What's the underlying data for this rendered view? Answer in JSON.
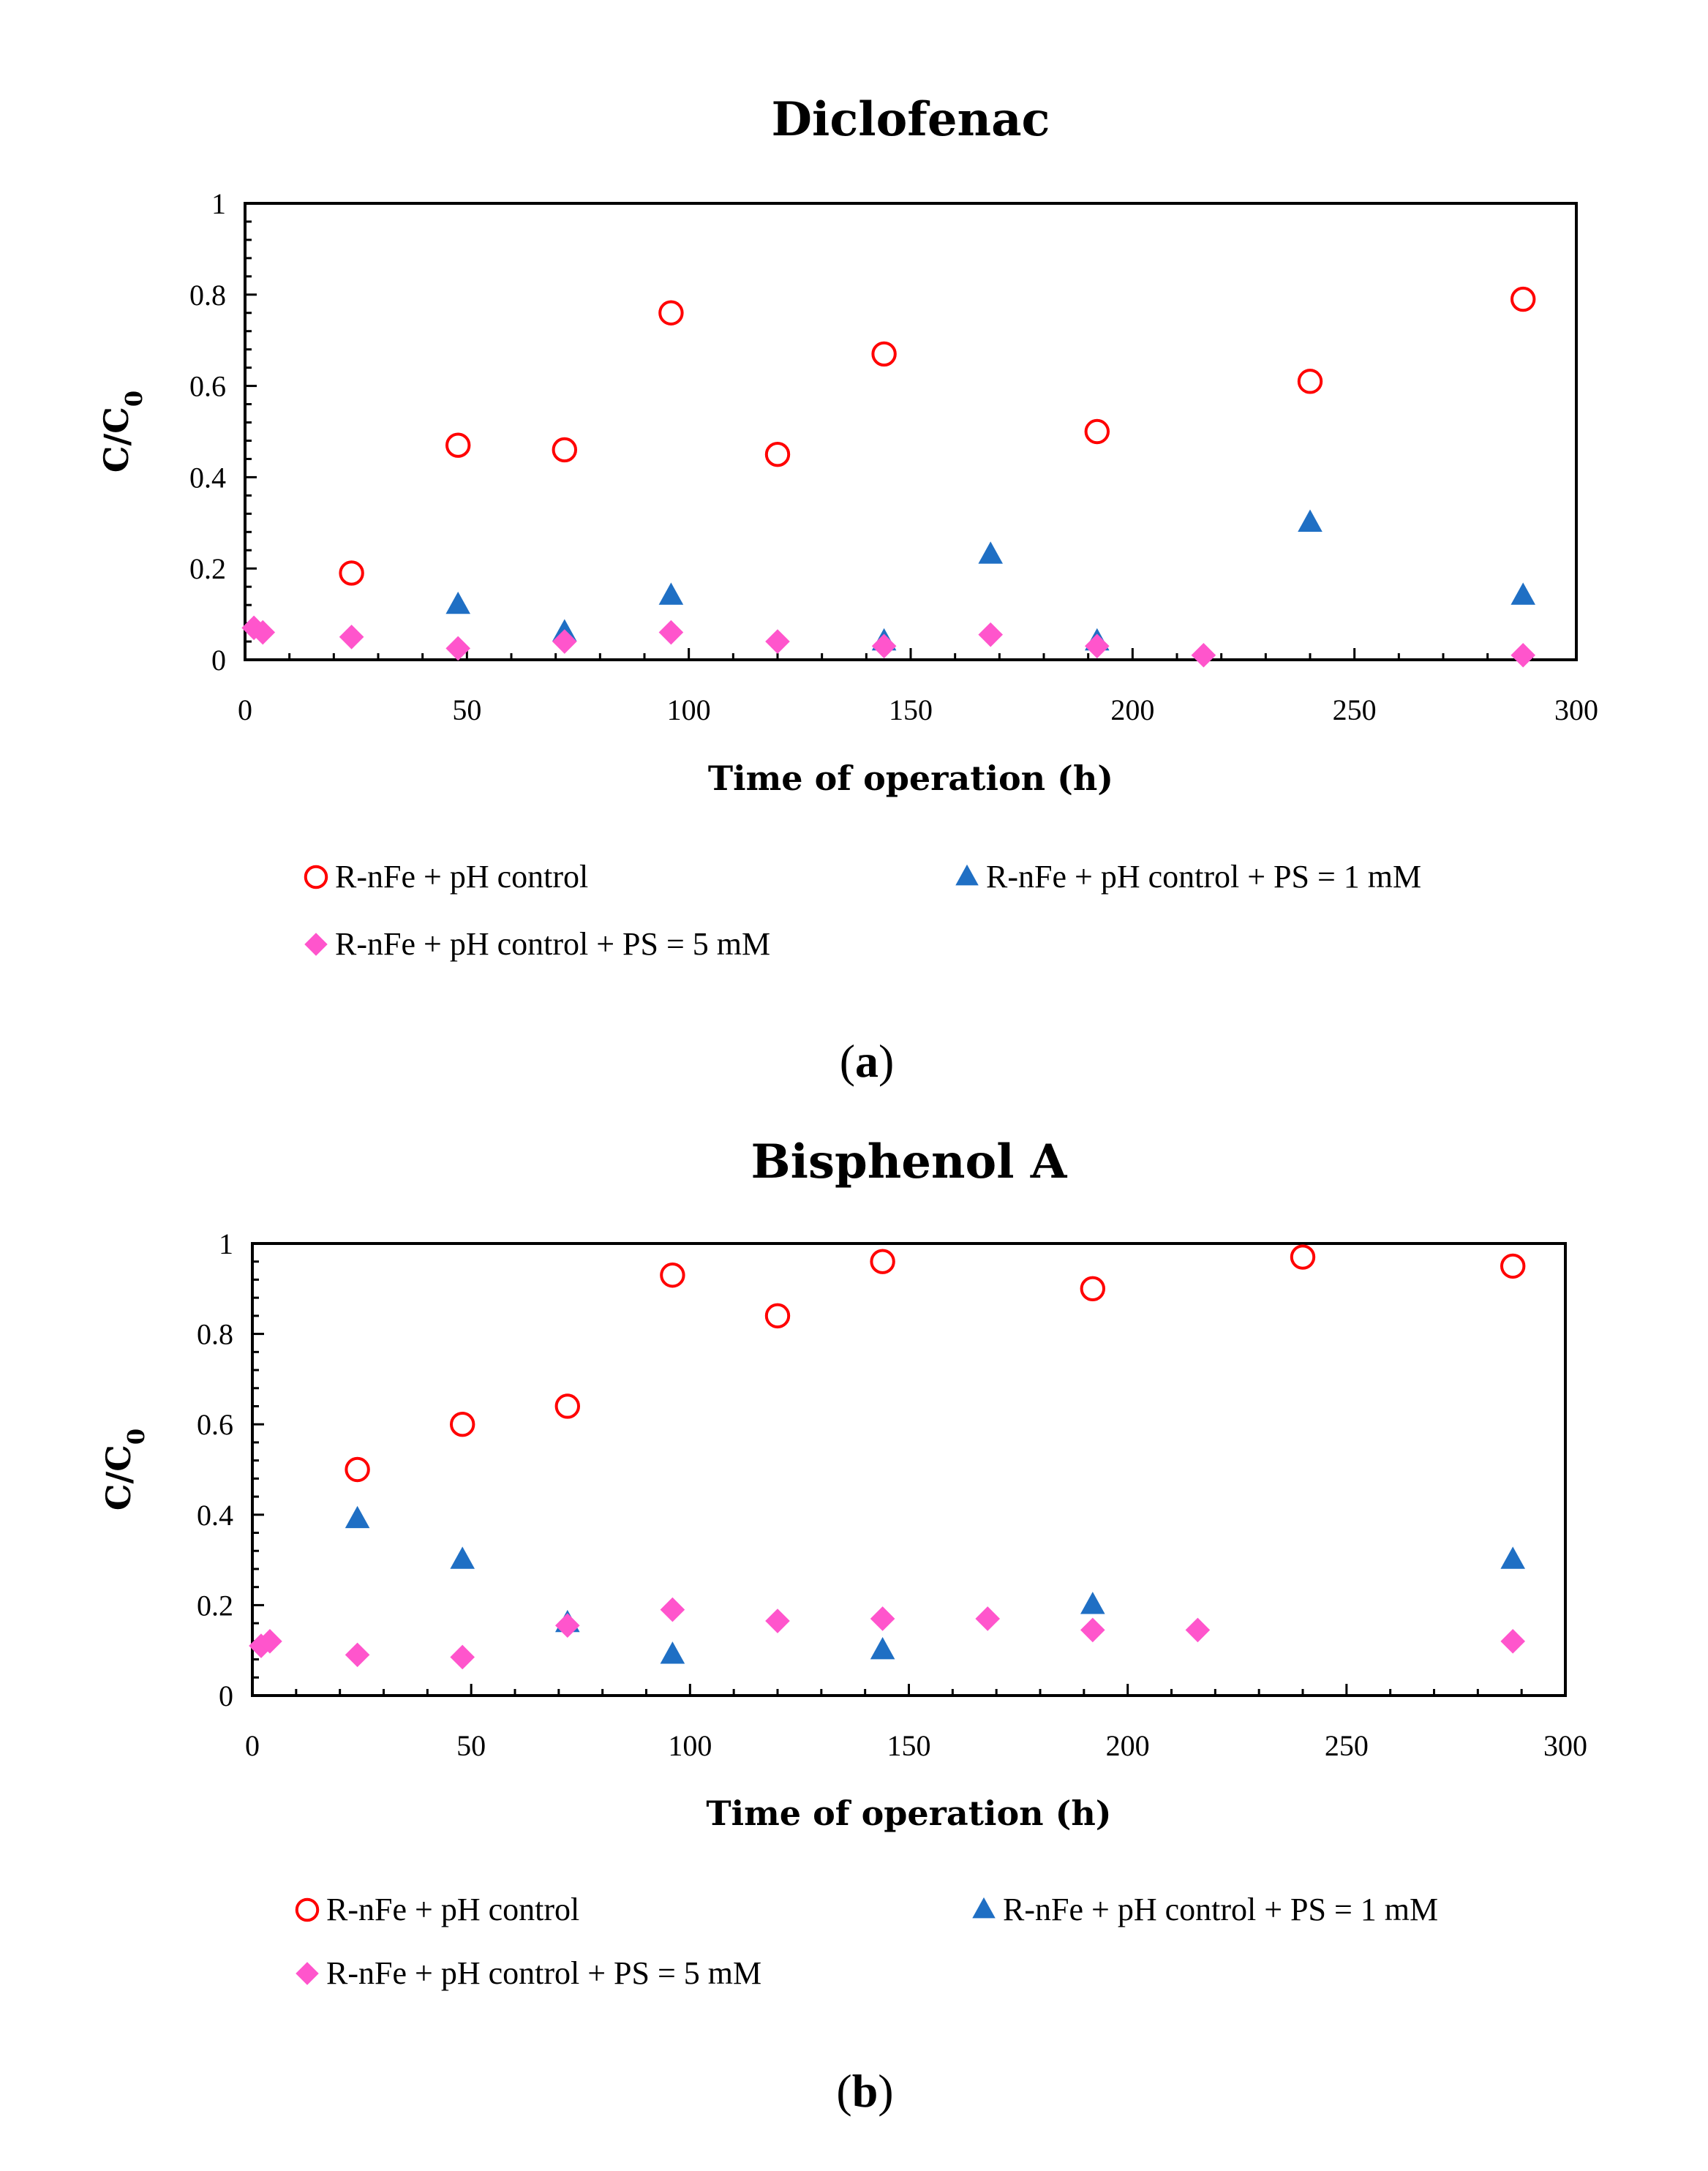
{
  "chart_data": [
    {
      "type": "scatter",
      "title": "Diclofenac",
      "xlabel": "Time of operation (h)",
      "ylabel": "C/C",
      "ylabel_sub": "0",
      "xlim": [
        0,
        300
      ],
      "ylim": [
        0,
        1
      ],
      "xticks": [
        0,
        50,
        100,
        150,
        200,
        250,
        300
      ],
      "yticks": [
        0,
        0.2,
        0.4,
        0.6,
        0.8,
        1
      ],
      "caption_letter": "a",
      "series": [
        {
          "name": "R-nFe + pH control",
          "marker": "circle-open",
          "color": "#ff0000",
          "x": [
            24,
            48,
            72,
            96,
            120,
            144,
            192,
            240,
            288
          ],
          "y": [
            0.19,
            0.47,
            0.46,
            0.76,
            0.45,
            0.67,
            0.5,
            0.61,
            0.79
          ]
        },
        {
          "name": "R-nFe + pH control + PS = 1 mM",
          "marker": "triangle",
          "color": "#1f6fc4",
          "x": [
            48,
            72,
            96,
            144,
            168,
            192,
            240,
            288
          ],
          "y": [
            0.12,
            0.06,
            0.14,
            0.04,
            0.23,
            0.04,
            0.3,
            0.14
          ]
        },
        {
          "name": "R-nFe + pH control + PS = 5 mM",
          "marker": "diamond",
          "color": "#ff55cc",
          "x": [
            2,
            4,
            24,
            48,
            72,
            96,
            120,
            144,
            168,
            192,
            216,
            288
          ],
          "y": [
            0.07,
            0.06,
            0.05,
            0.025,
            0.04,
            0.06,
            0.04,
            0.03,
            0.055,
            0.03,
            0.01,
            0.01
          ]
        }
      ]
    },
    {
      "type": "scatter",
      "title": "Bisphenol A",
      "xlabel": "Time of operation (h)",
      "ylabel": "C/C",
      "ylabel_sub": "0",
      "xlim": [
        0,
        300
      ],
      "ylim": [
        0,
        1
      ],
      "xticks": [
        0,
        50,
        100,
        150,
        200,
        250,
        300
      ],
      "yticks": [
        0,
        0.2,
        0.4,
        0.6,
        0.8,
        1
      ],
      "caption_letter": "b",
      "series": [
        {
          "name": "R-nFe + pH control",
          "marker": "circle-open",
          "color": "#ff0000",
          "x": [
            24,
            48,
            72,
            96,
            120,
            144,
            192,
            240,
            288
          ],
          "y": [
            0.5,
            0.6,
            0.64,
            0.93,
            0.84,
            0.96,
            0.9,
            0.97,
            0.95
          ]
        },
        {
          "name": "R-nFe + pH control + PS = 1 mM",
          "marker": "triangle",
          "color": "#1f6fc4",
          "x": [
            24,
            48,
            72,
            96,
            144,
            192,
            288
          ],
          "y": [
            0.39,
            0.3,
            0.16,
            0.09,
            0.1,
            0.2,
            0.3
          ]
        },
        {
          "name": "R-nFe + pH control + PS = 5 mM",
          "marker": "diamond",
          "color": "#ff55cc",
          "x": [
            2,
            4,
            24,
            48,
            72,
            96,
            120,
            144,
            168,
            192,
            216,
            288
          ],
          "y": [
            0.11,
            0.12,
            0.09,
            0.085,
            0.155,
            0.19,
            0.165,
            0.17,
            0.17,
            0.145,
            0.145,
            0.12
          ]
        }
      ]
    }
  ]
}
